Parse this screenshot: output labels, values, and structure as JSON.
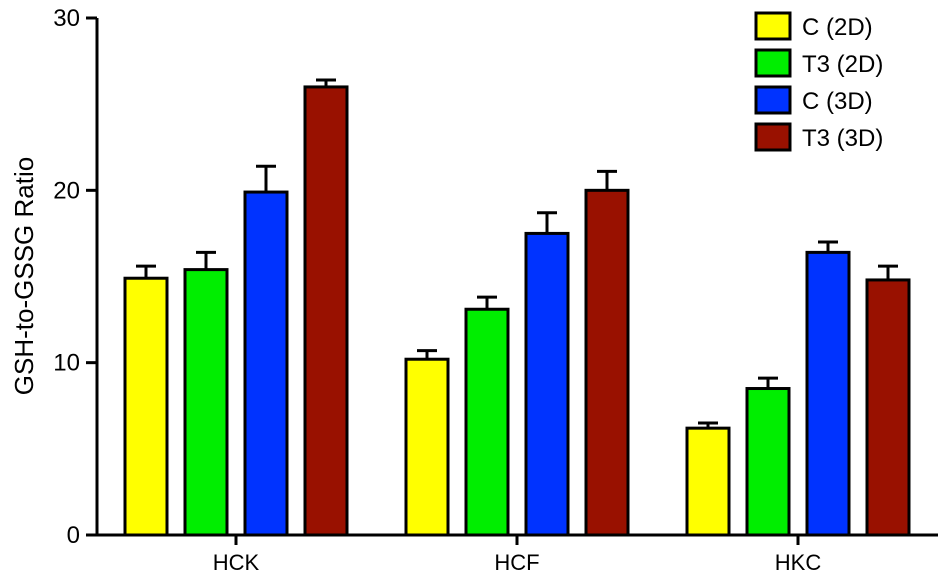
{
  "chart_data": {
    "type": "bar",
    "title": "",
    "xlabel": "",
    "ylabel": "GSH-to-GSSG Ratio",
    "ylim": [
      0,
      30
    ],
    "yticks": [
      0,
      10,
      20,
      30
    ],
    "categories": [
      "HCK",
      "HCF",
      "HKC"
    ],
    "series": [
      {
        "name": "C (2D)",
        "color": "#ffff00",
        "values": [
          14.9,
          10.2,
          6.2
        ],
        "errors": [
          0.7,
          0.5,
          0.3
        ]
      },
      {
        "name": "T3 (2D)",
        "color": "#00ee00",
        "values": [
          15.4,
          13.1,
          8.5
        ],
        "errors": [
          1.0,
          0.7,
          0.6
        ]
      },
      {
        "name": "C (3D)",
        "color": "#0033ff",
        "values": [
          19.9,
          17.5,
          16.4
        ],
        "errors": [
          1.5,
          1.2,
          0.6
        ]
      },
      {
        "name": "T3 (3D)",
        "color": "#991100",
        "values": [
          26.0,
          20.0,
          14.8
        ],
        "errors": [
          0.4,
          1.1,
          0.8
        ]
      }
    ],
    "legend": "top-right",
    "grid": false
  }
}
